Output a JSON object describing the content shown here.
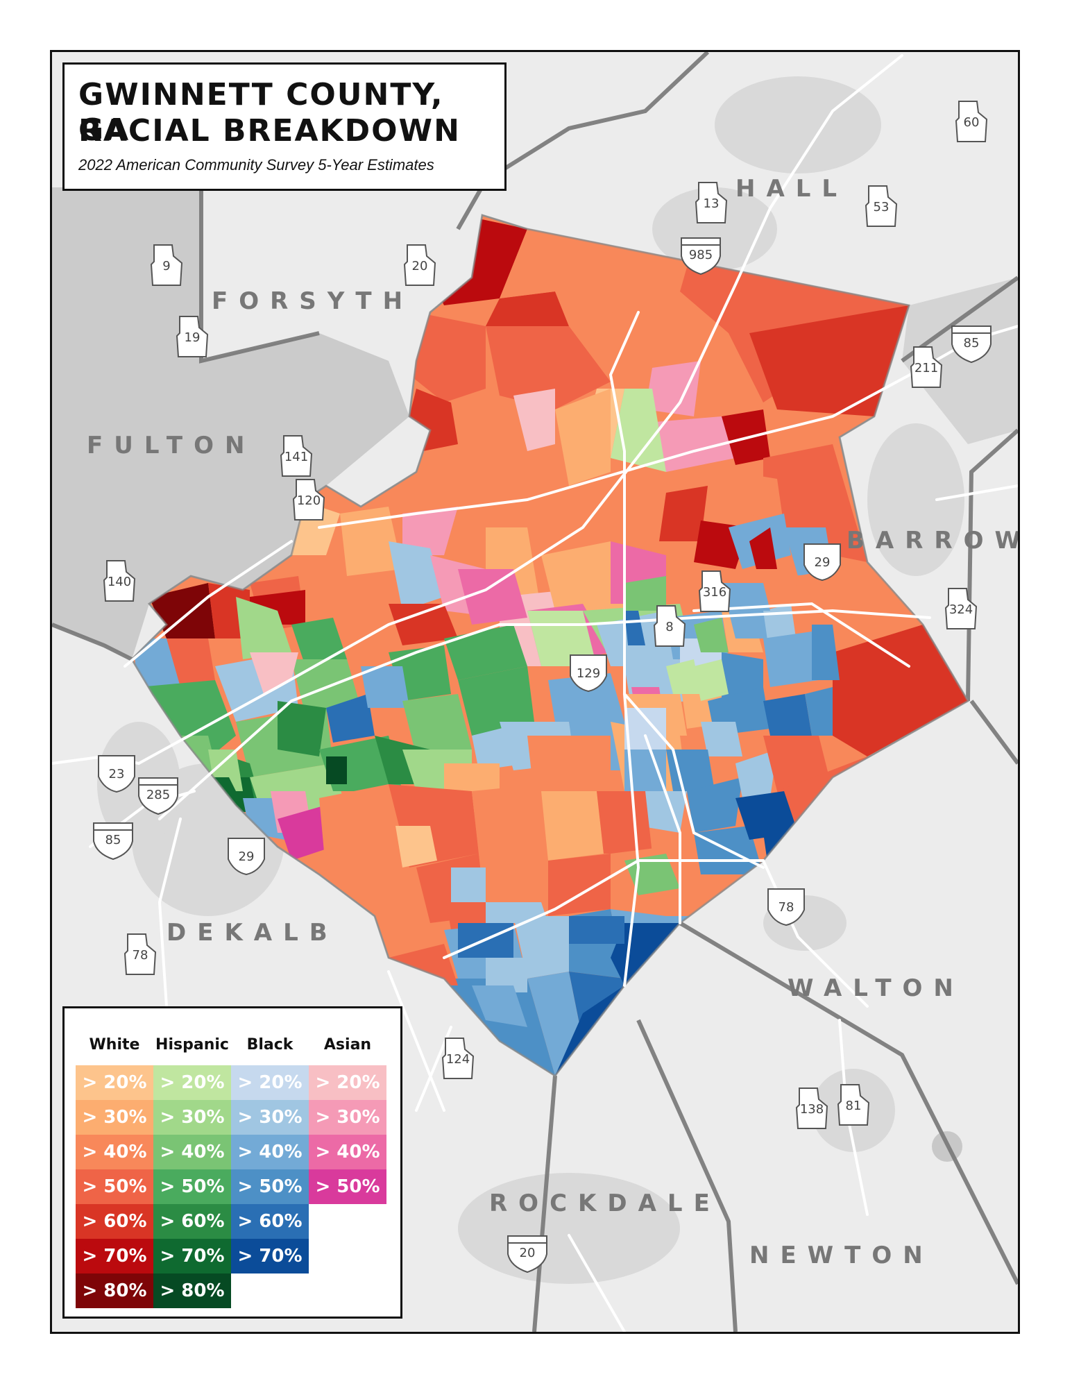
{
  "title": {
    "line1": "GWINNETT COUNTY, GA",
    "line2": "RACIAL BREAKDOWN",
    "subtitle": "2022 American Community Survey 5-Year Estimates"
  },
  "counties": [
    "HALL",
    "FORSYTH",
    "FULTON",
    "BARROW",
    "DEKALB",
    "WALTON",
    "ROCKDALE",
    "NEWTON"
  ],
  "highway_shields": [
    "60",
    "13",
    "53",
    "985",
    "9",
    "20",
    "19",
    "85",
    "211",
    "141",
    "120",
    "29",
    "140",
    "316",
    "324",
    "8",
    "129",
    "23",
    "285",
    "85",
    "29",
    "78",
    "78",
    "124",
    "138",
    "81",
    "20"
  ],
  "legend": {
    "groups": [
      {
        "name": "White",
        "items": [
          {
            "label": "> 20%",
            "color": "#fdc48c"
          },
          {
            "label": "> 30%",
            "color": "#fcad70"
          },
          {
            "label": "> 40%",
            "color": "#f8885a"
          },
          {
            "label": "> 50%",
            "color": "#ef6447"
          },
          {
            "label": "> 60%",
            "color": "#d93525"
          },
          {
            "label": "> 70%",
            "color": "#bb0a0e"
          },
          {
            "label": "> 80%",
            "color": "#7e0507"
          }
        ]
      },
      {
        "name": "Hispanic",
        "items": [
          {
            "label": "> 20%",
            "color": "#c0e6a0"
          },
          {
            "label": "> 30%",
            "color": "#a1d88a"
          },
          {
            "label": "> 40%",
            "color": "#7ac474"
          },
          {
            "label": "> 50%",
            "color": "#4aab5e"
          },
          {
            "label": "> 60%",
            "color": "#2b8c44"
          },
          {
            "label": "> 70%",
            "color": "#0f6a30"
          },
          {
            "label": "> 80%",
            "color": "#064a23"
          }
        ]
      },
      {
        "name": "Black",
        "items": [
          {
            "label": "> 20%",
            "color": "#c6d9ee"
          },
          {
            "label": "> 30%",
            "color": "#a0c6e2"
          },
          {
            "label": "> 40%",
            "color": "#73aad6"
          },
          {
            "label": "> 50%",
            "color": "#4d90c6"
          },
          {
            "label": "> 60%",
            "color": "#2a6fb4"
          },
          {
            "label": "> 70%",
            "color": "#0b4c99"
          }
        ]
      },
      {
        "name": "Asian",
        "items": [
          {
            "label": "> 20%",
            "color": "#f8bfc4"
          },
          {
            "label": "> 30%",
            "color": "#f59ab6"
          },
          {
            "label": "> 40%",
            "color": "#ec6aa6"
          },
          {
            "label": "> 50%",
            "color": "#d93a9c"
          }
        ]
      }
    ]
  }
}
